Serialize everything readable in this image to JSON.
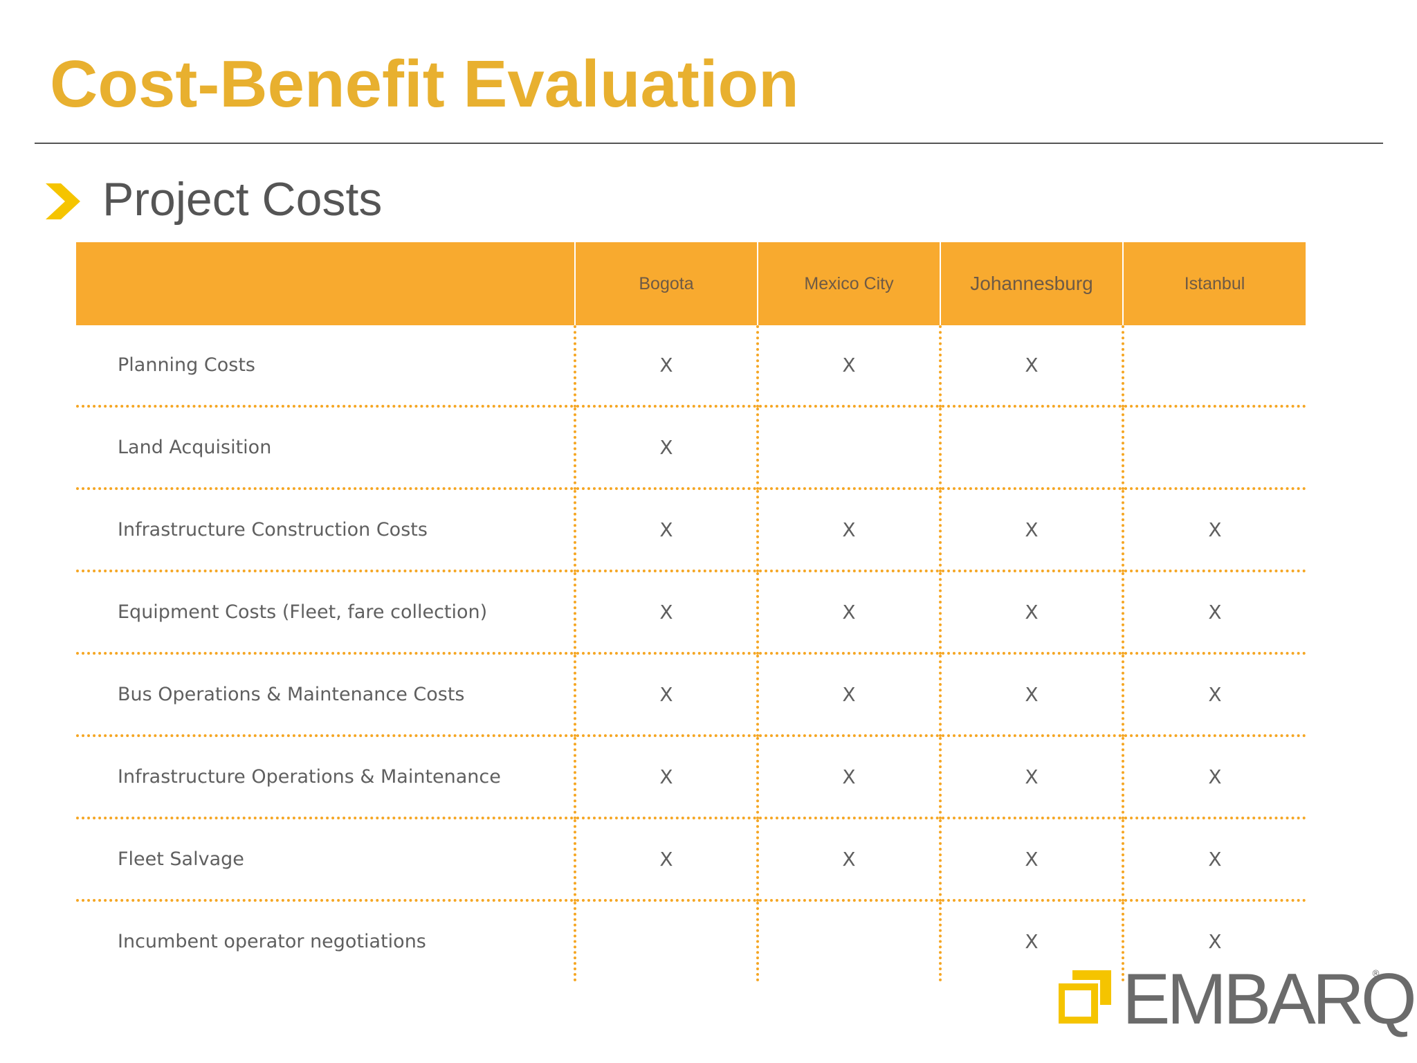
{
  "slide": {
    "title": "Cost-Benefit Evaluation",
    "subtitle": "Project Costs"
  },
  "table": {
    "corner_label": "",
    "columns": [
      "Bogota",
      "Mexico City",
      "Johannesburg",
      "Istanbul"
    ],
    "rows": [
      {
        "label": "Planning Costs",
        "marks": [
          "X",
          "X",
          "X",
          ""
        ]
      },
      {
        "label": "Land Acquisition",
        "marks": [
          "X",
          "",
          "",
          ""
        ]
      },
      {
        "label": "Infrastructure Construction Costs",
        "marks": [
          "X",
          "X",
          "X",
          "X"
        ]
      },
      {
        "label": "Equipment Costs (Fleet, fare collection)",
        "marks": [
          "X",
          "X",
          "X",
          "X"
        ]
      },
      {
        "label": "Bus Operations & Maintenance Costs",
        "marks": [
          "X",
          "X",
          "X",
          "X"
        ]
      },
      {
        "label": "Infrastructure Operations & Maintenance",
        "marks": [
          "X",
          "X",
          "X",
          "X"
        ]
      },
      {
        "label": "Fleet Salvage",
        "marks": [
          "X",
          "X",
          "X",
          "X"
        ]
      },
      {
        "label": "Incumbent operator negotiations",
        "marks": [
          "",
          "",
          "X",
          "X"
        ]
      }
    ]
  },
  "logo": {
    "text": "EMBARQ",
    "registered": "®"
  },
  "colors": {
    "title": "#E8B02F",
    "header_fill": "#F8AA2F",
    "dotted_lines": "#F5A623",
    "bullet": "#F5C400"
  }
}
